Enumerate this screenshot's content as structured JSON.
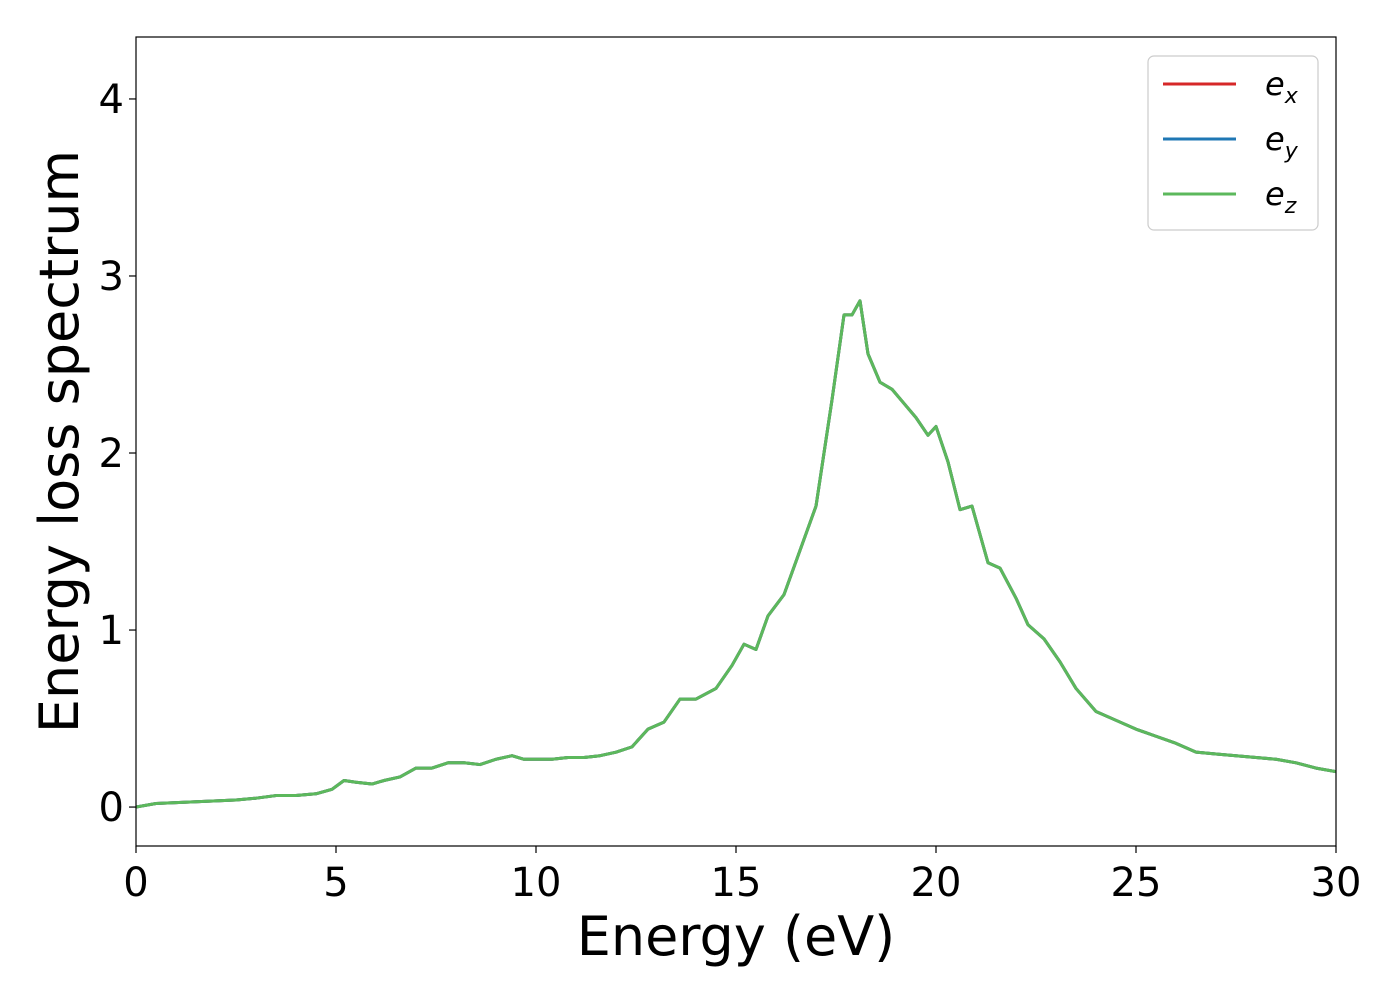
{
  "chart_data": {
    "type": "line",
    "title": "",
    "xlabel": "Energy (eV)",
    "ylabel": "Energy loss spectrum",
    "xlim": [
      0,
      30
    ],
    "ylim": [
      -0.22,
      4.35
    ],
    "xticks": [
      0,
      5,
      10,
      15,
      20,
      25,
      30
    ],
    "yticks": [
      0,
      1,
      2,
      3,
      4
    ],
    "grid": false,
    "legend_position": "top-right",
    "series": [
      {
        "name_base": "e",
        "name_sub": "x",
        "color": "#d62728",
        "x": [
          0,
          0.5,
          1.0,
          1.5,
          2.0,
          2.5,
          3.0,
          3.5,
          4.0,
          4.5,
          4.9,
          5.2,
          5.5,
          5.9,
          6.2,
          6.6,
          7.0,
          7.4,
          7.8,
          8.2,
          8.6,
          9.0,
          9.4,
          9.7,
          10.0,
          10.4,
          10.8,
          11.2,
          11.6,
          12.0,
          12.4,
          12.8,
          13.2,
          13.6,
          14.0,
          14.5,
          14.9,
          15.2,
          15.5,
          15.8,
          16.2,
          16.6,
          17.0,
          17.4,
          17.7,
          17.9,
          18.1,
          18.3,
          18.6,
          18.9,
          19.2,
          19.5,
          19.8,
          20.0,
          20.3,
          20.6,
          20.9,
          21.3,
          21.6,
          22.0,
          22.3,
          22.7,
          23.1,
          23.5,
          24.0,
          24.5,
          25.0,
          25.5,
          26.0,
          26.5,
          27.0,
          27.5,
          28.0,
          28.5,
          29.0,
          29.5,
          30.0
        ],
        "y": [
          0.0,
          0.02,
          0.025,
          0.03,
          0.035,
          0.04,
          0.05,
          0.065,
          0.065,
          0.075,
          0.1,
          0.15,
          0.14,
          0.13,
          0.15,
          0.17,
          0.22,
          0.22,
          0.25,
          0.25,
          0.24,
          0.27,
          0.29,
          0.27,
          0.27,
          0.27,
          0.28,
          0.28,
          0.29,
          0.31,
          0.34,
          0.44,
          0.48,
          0.61,
          0.61,
          0.67,
          0.8,
          0.92,
          0.89,
          1.08,
          1.2,
          1.45,
          1.7,
          2.3,
          2.78,
          2.78,
          2.86,
          2.56,
          2.4,
          2.36,
          2.28,
          2.2,
          2.1,
          2.15,
          1.95,
          1.68,
          1.7,
          1.38,
          1.35,
          1.18,
          1.03,
          0.95,
          0.82,
          0.67,
          0.54,
          0.49,
          0.44,
          0.4,
          0.36,
          0.31,
          0.3,
          0.29,
          0.28,
          0.27,
          0.25,
          0.22,
          0.2
        ]
      },
      {
        "name_base": "e",
        "name_sub": "y",
        "color": "#1f77b4",
        "x": [
          0,
          0.5,
          1.0,
          1.5,
          2.0,
          2.5,
          3.0,
          3.5,
          4.0,
          4.5,
          4.9,
          5.2,
          5.5,
          5.9,
          6.2,
          6.6,
          7.0,
          7.4,
          7.8,
          8.2,
          8.6,
          9.0,
          9.4,
          9.7,
          10.0,
          10.4,
          10.8,
          11.2,
          11.6,
          12.0,
          12.4,
          12.8,
          13.2,
          13.6,
          14.0,
          14.5,
          14.9,
          15.2,
          15.5,
          15.8,
          16.2,
          16.6,
          17.0,
          17.4,
          17.7,
          17.9,
          18.1,
          18.3,
          18.6,
          18.9,
          19.2,
          19.5,
          19.8,
          20.0,
          20.3,
          20.6,
          20.9,
          21.3,
          21.6,
          22.0,
          22.3,
          22.7,
          23.1,
          23.5,
          24.0,
          24.5,
          25.0,
          25.5,
          26.0,
          26.5,
          27.0,
          27.5,
          28.0,
          28.5,
          29.0,
          29.5,
          30.0
        ],
        "y": [
          0.0,
          0.02,
          0.025,
          0.03,
          0.035,
          0.04,
          0.05,
          0.065,
          0.065,
          0.075,
          0.1,
          0.15,
          0.14,
          0.13,
          0.15,
          0.17,
          0.22,
          0.22,
          0.25,
          0.25,
          0.24,
          0.27,
          0.29,
          0.27,
          0.27,
          0.27,
          0.28,
          0.28,
          0.29,
          0.31,
          0.34,
          0.44,
          0.48,
          0.61,
          0.61,
          0.67,
          0.8,
          0.92,
          0.89,
          1.08,
          1.2,
          1.45,
          1.7,
          2.3,
          2.78,
          2.78,
          2.86,
          2.56,
          2.4,
          2.36,
          2.28,
          2.2,
          2.1,
          2.15,
          1.95,
          1.68,
          1.7,
          1.38,
          1.35,
          1.18,
          1.03,
          0.95,
          0.82,
          0.67,
          0.54,
          0.49,
          0.44,
          0.4,
          0.36,
          0.31,
          0.3,
          0.29,
          0.28,
          0.27,
          0.25,
          0.22,
          0.2
        ]
      },
      {
        "name_base": "e",
        "name_sub": "z",
        "color": "#5cb85c",
        "x": [
          0,
          0.5,
          1.0,
          1.5,
          2.0,
          2.5,
          3.0,
          3.5,
          4.0,
          4.5,
          4.9,
          5.2,
          5.5,
          5.9,
          6.2,
          6.6,
          7.0,
          7.4,
          7.8,
          8.2,
          8.6,
          9.0,
          9.4,
          9.7,
          10.0,
          10.4,
          10.8,
          11.2,
          11.6,
          12.0,
          12.4,
          12.8,
          13.2,
          13.6,
          14.0,
          14.5,
          14.9,
          15.2,
          15.5,
          15.8,
          16.2,
          16.6,
          17.0,
          17.4,
          17.7,
          17.9,
          18.1,
          18.3,
          18.6,
          18.9,
          19.2,
          19.5,
          19.8,
          20.0,
          20.3,
          20.6,
          20.9,
          21.3,
          21.6,
          22.0,
          22.3,
          22.7,
          23.1,
          23.5,
          24.0,
          24.5,
          25.0,
          25.5,
          26.0,
          26.5,
          27.0,
          27.5,
          28.0,
          28.5,
          29.0,
          29.5,
          30.0
        ],
        "y": [
          0.0,
          0.02,
          0.025,
          0.03,
          0.035,
          0.04,
          0.05,
          0.065,
          0.065,
          0.075,
          0.1,
          0.15,
          0.14,
          0.13,
          0.15,
          0.17,
          0.22,
          0.22,
          0.25,
          0.25,
          0.24,
          0.27,
          0.29,
          0.27,
          0.27,
          0.27,
          0.28,
          0.28,
          0.29,
          0.31,
          0.34,
          0.44,
          0.48,
          0.61,
          0.61,
          0.67,
          0.8,
          0.92,
          0.89,
          1.08,
          1.2,
          1.45,
          1.7,
          2.3,
          2.78,
          2.78,
          2.86,
          2.56,
          2.4,
          2.36,
          2.28,
          2.2,
          2.1,
          2.15,
          1.95,
          1.68,
          1.7,
          1.38,
          1.35,
          1.18,
          1.03,
          0.95,
          0.82,
          0.67,
          0.54,
          0.49,
          0.44,
          0.4,
          0.36,
          0.31,
          0.3,
          0.29,
          0.28,
          0.27,
          0.25,
          0.22,
          0.2
        ]
      }
    ]
  }
}
